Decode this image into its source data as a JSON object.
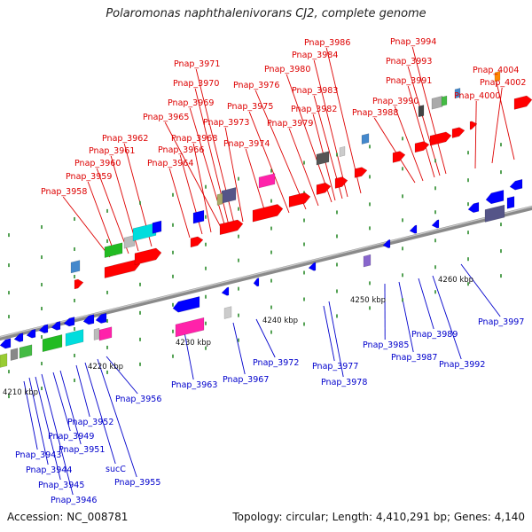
{
  "title": "Polaromonas naphthalenivorans CJ2, complete genome",
  "footer": {
    "accession": "Accession: NC_008781",
    "summary": "Topology: circular; Length: 4,410,291 bp; Genes: 4,140"
  },
  "colors": {
    "top_labels": "#dd0000",
    "bottom_labels": "#0000cc",
    "forward_gene": "#ff0000",
    "reverse_gene": "#0000ff",
    "backbone": "#8a8a8a",
    "tick": "#2a8a2a"
  },
  "tick_labels": [
    "4210 kbp",
    "4220 kbp",
    "4230 kbp",
    "4240 kbp",
    "4250 kbp",
    "4260 kbp"
  ],
  "top_genes": [
    "Pnap_3958",
    "Pnap_3959",
    "Pnap_3960",
    "Pnap_3961",
    "Pnap_3962",
    "Pnap_3964",
    "Pnap_3966",
    "Pnap_3968",
    "Pnap_3965",
    "Pnap_3969",
    "Pnap_3970",
    "Pnap_3971",
    "Pnap_3973",
    "Pnap_3974",
    "Pnap_3975",
    "Pnap_3976",
    "Pnap_3979",
    "Pnap_3980",
    "Pnap_3982",
    "Pnap_3983",
    "Pnap_3984",
    "Pnap_3986",
    "Pnap_3988",
    "Pnap_3990",
    "Pnap_3991",
    "Pnap_3993",
    "Pnap_3994",
    "Pnap_4000",
    "Pnap_4002",
    "Pnap_4004"
  ],
  "bottom_genes": [
    "Pnap_3943",
    "Pnap_3944",
    "Pnap_3945",
    "Pnap_3946",
    "Pnap_3949",
    "Pnap_3951",
    "Pnap_3952",
    "sucC",
    "Pnap_3955",
    "Pnap_3956",
    "Pnap_3963",
    "Pnap_3967",
    "Pnap_3972",
    "Pnap_3977",
    "Pnap_3978",
    "Pnap_3985",
    "Pnap_3987",
    "Pnap_3989",
    "Pnap_3992",
    "Pnap_3997"
  ]
}
